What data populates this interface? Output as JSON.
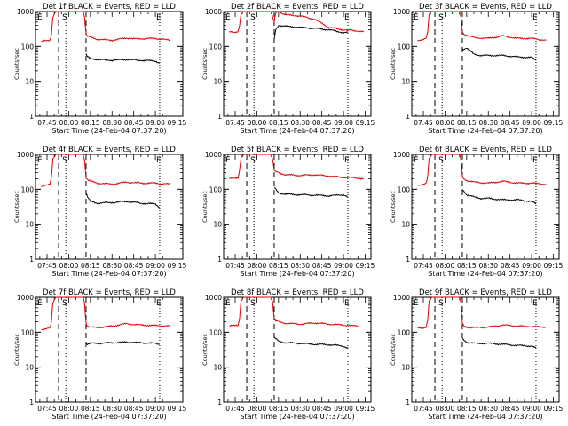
{
  "colors": {
    "events": "#000000",
    "lld": "#dd0000",
    "axis": "#000000"
  },
  "common": {
    "xlabel": "Start Time (24-Feb-04 07:37:20)",
    "ylabel": "Counts/sec",
    "x_tick_labels": [
      "07:45",
      "08:00",
      "08:15",
      "08:30",
      "08:45",
      "09:00",
      "09:15"
    ],
    "y_tick_labels": [
      "1",
      "10",
      "100",
      "1000"
    ],
    "markers": [
      "E",
      "S",
      "E"
    ]
  },
  "chart_data": [
    {
      "type": "line",
      "title": "Det 1f BLACK = Events, RED = LLD",
      "y_scale": "log",
      "ylim": [
        1,
        1000
      ],
      "series": [
        {
          "name": "LLD",
          "x": [
            "07:41",
            "07:45",
            "07:47",
            "07:48",
            "07:49",
            "07:51",
            "08:10",
            "08:11",
            "08:12",
            "08:13",
            "08:15",
            "08:20",
            "08:30",
            "08:40",
            "08:45",
            "09:00",
            "09:10"
          ],
          "y": [
            140,
            145,
            150,
            220,
            700,
            1000,
            1000,
            700,
            230,
            195,
            185,
            160,
            150,
            175,
            165,
            170,
            150
          ]
        },
        {
          "name": "Events",
          "x": [
            "08:12",
            "08:13",
            "08:15",
            "08:20",
            "08:30",
            "08:40",
            "08:50",
            "09:00",
            "09:03"
          ],
          "y": [
            60,
            50,
            45,
            42,
            40,
            42,
            40,
            38,
            33
          ]
        }
      ],
      "vlines": {
        "dashed": [
          "07:53",
          "08:12"
        ],
        "dotted": [
          "07:58",
          "09:03"
        ]
      }
    },
    {
      "type": "line",
      "title": "Det 2f BLACK = Events, RED = LLD",
      "y_scale": "log",
      "ylim": [
        1,
        1000
      ],
      "series": [
        {
          "name": "LLD",
          "x": [
            "07:41",
            "07:45",
            "07:47",
            "07:48",
            "07:49",
            "07:51",
            "08:10",
            "08:11",
            "08:12",
            "08:13",
            "08:15",
            "08:20",
            "08:30",
            "08:40",
            "08:50",
            "09:00",
            "09:10",
            "09:14"
          ],
          "y": [
            260,
            260,
            270,
            400,
            800,
            1000,
            1000,
            650,
            500,
            900,
            1000,
            800,
            750,
            600,
            350,
            300,
            280,
            260
          ]
        },
        {
          "name": "Events",
          "x": [
            "08:12",
            "08:13",
            "08:15",
            "08:20",
            "08:30",
            "08:40",
            "08:50",
            "09:00",
            "09:03"
          ],
          "y": [
            150,
            300,
            400,
            380,
            350,
            330,
            300,
            250,
            250
          ]
        }
      ],
      "vlines": {
        "dashed": [
          "07:53",
          "08:12"
        ],
        "dotted": [
          "07:58",
          "09:03"
        ]
      }
    },
    {
      "type": "line",
      "title": "Det 3f BLACK = Events, RED = LLD",
      "y_scale": "log",
      "ylim": [
        1,
        1000
      ],
      "series": [
        {
          "name": "LLD",
          "x": [
            "07:41",
            "07:45",
            "07:47",
            "07:48",
            "07:49",
            "07:51",
            "08:10",
            "08:11",
            "08:12",
            "08:13",
            "08:15",
            "08:20",
            "08:30",
            "08:40",
            "08:50",
            "09:00",
            "09:10"
          ],
          "y": [
            150,
            160,
            170,
            250,
            800,
            1000,
            1000,
            700,
            260,
            230,
            210,
            180,
            170,
            200,
            170,
            170,
            150
          ]
        },
        {
          "name": "Events",
          "x": [
            "08:12",
            "08:13",
            "08:15",
            "08:20",
            "08:25",
            "08:30",
            "08:40",
            "08:50",
            "09:00",
            "09:03"
          ],
          "y": [
            80,
            85,
            90,
            60,
            55,
            55,
            55,
            50,
            48,
            40
          ]
        }
      ],
      "vlines": {
        "dashed": [
          "07:53",
          "08:12"
        ],
        "dotted": [
          "07:58",
          "09:03"
        ]
      }
    },
    {
      "type": "line",
      "title": "Det 4f BLACK = Events, RED = LLD",
      "y_scale": "log",
      "ylim": [
        1,
        1000
      ],
      "series": [
        {
          "name": "LLD",
          "x": [
            "07:41",
            "07:45",
            "07:47",
            "07:48",
            "07:49",
            "07:51",
            "08:10",
            "08:11",
            "08:12",
            "08:13",
            "08:15",
            "08:20",
            "08:30",
            "08:40",
            "08:50",
            "09:00",
            "09:10"
          ],
          "y": [
            120,
            130,
            140,
            220,
            750,
            1000,
            1000,
            700,
            220,
            190,
            170,
            150,
            140,
            160,
            150,
            150,
            140
          ]
        },
        {
          "name": "Events",
          "x": [
            "08:12",
            "08:13",
            "08:15",
            "08:20",
            "08:30",
            "08:40",
            "08:50",
            "09:00",
            "09:03"
          ],
          "y": [
            80,
            60,
            45,
            40,
            42,
            45,
            40,
            38,
            30
          ]
        }
      ],
      "vlines": {
        "dashed": [
          "07:53",
          "08:12"
        ],
        "dotted": [
          "07:58",
          "09:03"
        ]
      }
    },
    {
      "type": "line",
      "title": "Det 5f BLACK = Events, RED = LLD",
      "y_scale": "log",
      "ylim": [
        1,
        1000
      ],
      "series": [
        {
          "name": "LLD",
          "x": [
            "07:41",
            "07:45",
            "07:47",
            "07:48",
            "07:49",
            "07:51",
            "08:10",
            "08:11",
            "08:12",
            "08:13",
            "08:15",
            "08:20",
            "08:30",
            "08:40",
            "08:50",
            "09:00",
            "09:10",
            "09:14"
          ],
          "y": [
            200,
            210,
            220,
            350,
            800,
            1000,
            1000,
            700,
            350,
            320,
            300,
            260,
            250,
            260,
            240,
            220,
            210,
            200
          ]
        },
        {
          "name": "Events",
          "x": [
            "08:12",
            "08:13",
            "08:15",
            "08:20",
            "08:30",
            "08:40",
            "08:50",
            "09:00",
            "09:03"
          ],
          "y": [
            110,
            100,
            80,
            72,
            70,
            68,
            65,
            70,
            60
          ]
        }
      ],
      "vlines": {
        "dashed": [
          "07:53",
          "08:12"
        ],
        "dotted": [
          "07:58",
          "09:03"
        ]
      }
    },
    {
      "type": "line",
      "title": "Det 6f BLACK = Events, RED = LLD",
      "y_scale": "log",
      "ylim": [
        1,
        1000
      ],
      "series": [
        {
          "name": "LLD",
          "x": [
            "07:41",
            "07:45",
            "07:47",
            "07:48",
            "07:49",
            "07:51",
            "08:10",
            "08:11",
            "08:12",
            "08:13",
            "08:15",
            "08:20",
            "08:30",
            "08:40",
            "08:50",
            "09:00",
            "09:10"
          ],
          "y": [
            130,
            140,
            150,
            230,
            750,
            1000,
            1000,
            700,
            240,
            200,
            180,
            160,
            150,
            170,
            150,
            150,
            140
          ]
        },
        {
          "name": "Events",
          "x": [
            "08:12",
            "08:13",
            "08:15",
            "08:20",
            "08:25",
            "08:30",
            "08:40",
            "08:50",
            "09:00",
            "09:03"
          ],
          "y": [
            100,
            90,
            70,
            60,
            55,
            55,
            50,
            50,
            45,
            38
          ]
        }
      ],
      "vlines": {
        "dashed": [
          "07:53",
          "08:12"
        ],
        "dotted": [
          "07:58",
          "09:03"
        ]
      }
    },
    {
      "type": "line",
      "title": "Det 7f BLACK = Events, RED = LLD",
      "y_scale": "log",
      "ylim": [
        1,
        1000
      ],
      "series": [
        {
          "name": "LLD",
          "x": [
            "07:41",
            "07:45",
            "07:47",
            "07:48",
            "07:49",
            "07:51",
            "08:10",
            "08:11",
            "08:12",
            "08:13",
            "08:15",
            "08:20",
            "08:30",
            "08:40",
            "08:50",
            "09:00",
            "09:10"
          ],
          "y": [
            120,
            125,
            130,
            200,
            700,
            1000,
            1000,
            700,
            180,
            150,
            140,
            135,
            150,
            175,
            160,
            155,
            150
          ]
        },
        {
          "name": "Events",
          "x": [
            "08:12",
            "08:13",
            "08:15",
            "08:20",
            "08:30",
            "08:40",
            "08:50",
            "09:00",
            "09:03"
          ],
          "y": [
            50,
            45,
            48,
            48,
            50,
            52,
            50,
            48,
            45
          ]
        }
      ],
      "vlines": {
        "dashed": [
          "07:53",
          "08:12"
        ],
        "dotted": [
          "07:58",
          "09:03"
        ]
      }
    },
    {
      "type": "line",
      "title": "Det 8f BLACK = Events, RED = LLD",
      "y_scale": "log",
      "ylim": [
        1,
        1000
      ],
      "series": [
        {
          "name": "LLD",
          "x": [
            "07:41",
            "07:45",
            "07:47",
            "07:48",
            "07:49",
            "07:51",
            "08:10",
            "08:11",
            "08:12",
            "08:13",
            "08:15",
            "08:20",
            "08:30",
            "08:40",
            "08:50",
            "09:00",
            "09:10"
          ],
          "y": [
            150,
            155,
            160,
            250,
            800,
            1000,
            1000,
            700,
            250,
            210,
            200,
            180,
            170,
            185,
            170,
            160,
            150
          ]
        },
        {
          "name": "Events",
          "x": [
            "08:12",
            "08:13",
            "08:15",
            "08:20",
            "08:30",
            "08:40",
            "08:50",
            "09:00",
            "09:03"
          ],
          "y": [
            70,
            65,
            55,
            50,
            48,
            45,
            44,
            40,
            35
          ]
        }
      ],
      "vlines": {
        "dashed": [
          "07:53",
          "08:12"
        ],
        "dotted": [
          "07:58",
          "09:03"
        ]
      }
    },
    {
      "type": "line",
      "title": "Det 9f BLACK = Events, RED = LLD",
      "y_scale": "log",
      "ylim": [
        1,
        1000
      ],
      "series": [
        {
          "name": "LLD",
          "x": [
            "07:41",
            "07:45",
            "07:47",
            "07:48",
            "07:49",
            "07:51",
            "08:10",
            "08:11",
            "08:12",
            "08:13",
            "08:15",
            "08:20",
            "08:30",
            "08:40",
            "08:50",
            "09:00",
            "09:10"
          ],
          "y": [
            130,
            135,
            140,
            220,
            750,
            1000,
            1000,
            700,
            180,
            150,
            140,
            135,
            140,
            160,
            150,
            145,
            140
          ]
        },
        {
          "name": "Events",
          "x": [
            "08:12",
            "08:13",
            "08:15",
            "08:20",
            "08:30",
            "08:40",
            "08:50",
            "09:00",
            "09:03"
          ],
          "y": [
            65,
            60,
            52,
            48,
            48,
            45,
            42,
            40,
            35
          ]
        }
      ],
      "vlines": {
        "dashed": [
          "07:53",
          "08:12"
        ],
        "dotted": [
          "07:58",
          "09:03"
        ]
      }
    }
  ]
}
